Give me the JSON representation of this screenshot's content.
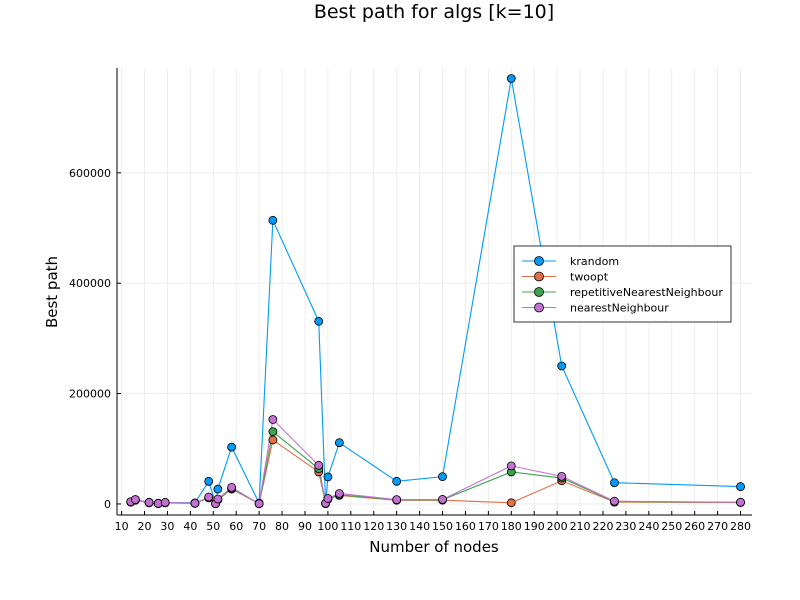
{
  "chart_data": {
    "type": "line",
    "title": "Best path for algs [k=10]",
    "xlabel": "Number of nodes",
    "ylabel": "Best path",
    "xlim": [
      8,
      285
    ],
    "ylim": [
      -20000,
      790000
    ],
    "xticks": [
      10,
      20,
      30,
      40,
      50,
      60,
      70,
      80,
      90,
      100,
      110,
      120,
      130,
      140,
      150,
      160,
      170,
      180,
      190,
      200,
      210,
      220,
      230,
      240,
      250,
      260,
      270,
      280
    ],
    "yticks": [
      0,
      200000,
      400000,
      600000
    ],
    "grid": true,
    "legend_position": "right",
    "x": [
      14,
      16,
      22,
      26,
      29,
      42,
      48,
      51,
      52,
      58,
      70,
      76,
      96,
      99,
      100,
      105,
      130,
      150,
      180,
      202,
      225,
      280
    ],
    "series": [
      {
        "name": "krandom",
        "color": "#009af9",
        "values": [
          4000,
          7000,
          3000,
          1500,
          2500,
          2000,
          41000,
          1000,
          27000,
          103000,
          1500,
          514000,
          331000,
          1500,
          49000,
          111000,
          41000,
          49500,
          771000,
          250000,
          38500,
          31500
        ]
      },
      {
        "name": "twoopt",
        "color": "#e26f46",
        "values": [
          3300,
          6800,
          2000,
          600,
          2000,
          1000,
          11000,
          400,
          7500,
          27000,
          400,
          116000,
          58000,
          500,
          8500,
          15500,
          6700,
          6900,
          2100,
          42000,
          3400,
          2600
        ]
      },
      {
        "name": "repetitiveNearestNeighbour",
        "color": "#3da44d",
        "values": [
          3500,
          7800,
          2500,
          800,
          2400,
          1100,
          11500,
          450,
          8000,
          28000,
          450,
          131000,
          64000,
          800,
          9000,
          16500,
          7500,
          7600,
          58000,
          47000,
          4300,
          3000
        ]
      },
      {
        "name": "nearestNeighbour",
        "color": "#c271d2",
        "values": [
          4000,
          8000,
          2800,
          1000,
          2800,
          1300,
          12500,
          550,
          9000,
          30000,
          500,
          153000,
          70000,
          1200,
          10000,
          19000,
          7800,
          8200,
          69000,
          50000,
          5000,
          3100
        ]
      }
    ]
  }
}
